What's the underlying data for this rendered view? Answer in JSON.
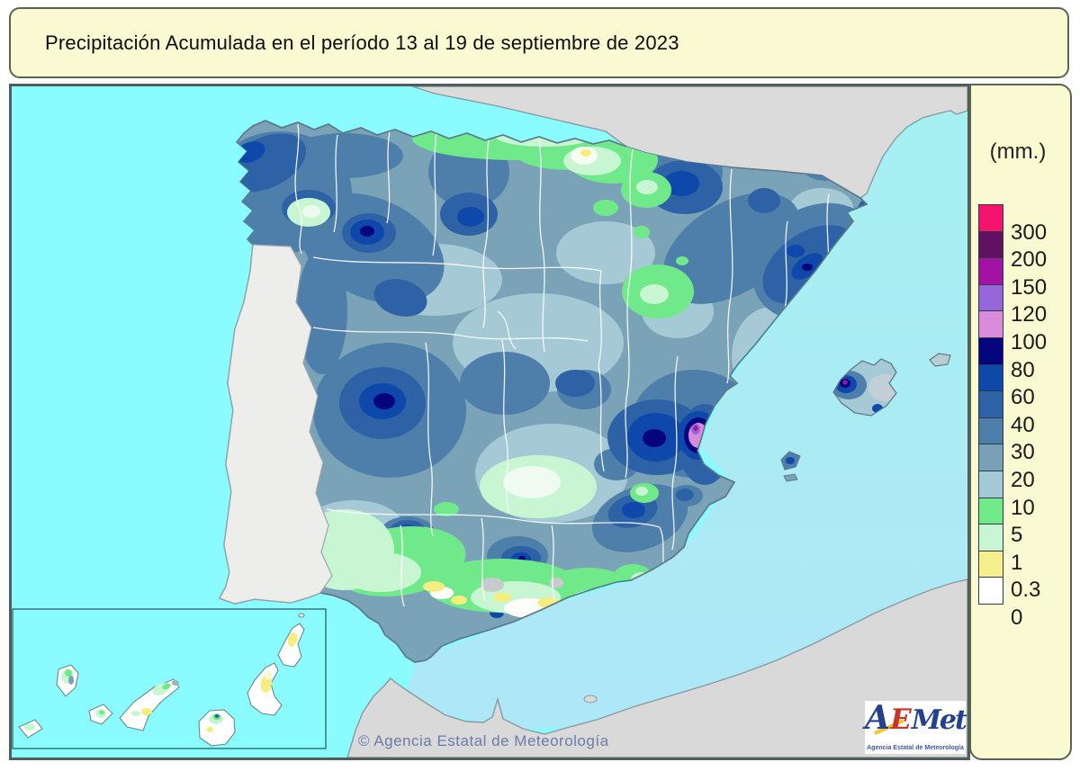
{
  "title": "Precipitación Acumulada en el período 13 al 19 de septiembre de 2023",
  "legend": {
    "unit_label": "(mm.)",
    "entries": [
      {
        "color": "#F4146E",
        "label": "300"
      },
      {
        "color": "#5E1260",
        "label": "200"
      },
      {
        "color": "#A312A3",
        "label": "150"
      },
      {
        "color": "#9566D9",
        "label": "120"
      },
      {
        "color": "#DB8BDB",
        "label": "100"
      },
      {
        "color": "#05057E",
        "label": "80"
      },
      {
        "color": "#0E48AA",
        "label": "60"
      },
      {
        "color": "#2E62A6",
        "label": "40"
      },
      {
        "color": "#4E7FAB",
        "label": "30"
      },
      {
        "color": "#78A1B8",
        "label": "20"
      },
      {
        "color": "#A5CAD6",
        "label": "10"
      },
      {
        "color": "#70E98A",
        "label": "5"
      },
      {
        "color": "#C8F6D2",
        "label": "1"
      },
      {
        "color": "#F5EF8E",
        "label": "0.3"
      },
      {
        "color": "#FFFFFF",
        "label": "0"
      }
    ]
  },
  "map": {
    "copyright": "© Agencia Estatal de Meteorología",
    "colors": {
      "sea_atlantic": "#8AFBFF",
      "sea_mediterranean": "#A9E9F5",
      "neighbor_land": "#DBDBDB",
      "portugal": "#EDEDEB",
      "spain_base": "#7AA3B8",
      "province_border": "#FFFFFF"
    }
  },
  "logo": {
    "letter_a": "A",
    "letter_e": "E",
    "letters_met": "Met",
    "subtitle": "Agencia Estatal de Meteorología"
  }
}
